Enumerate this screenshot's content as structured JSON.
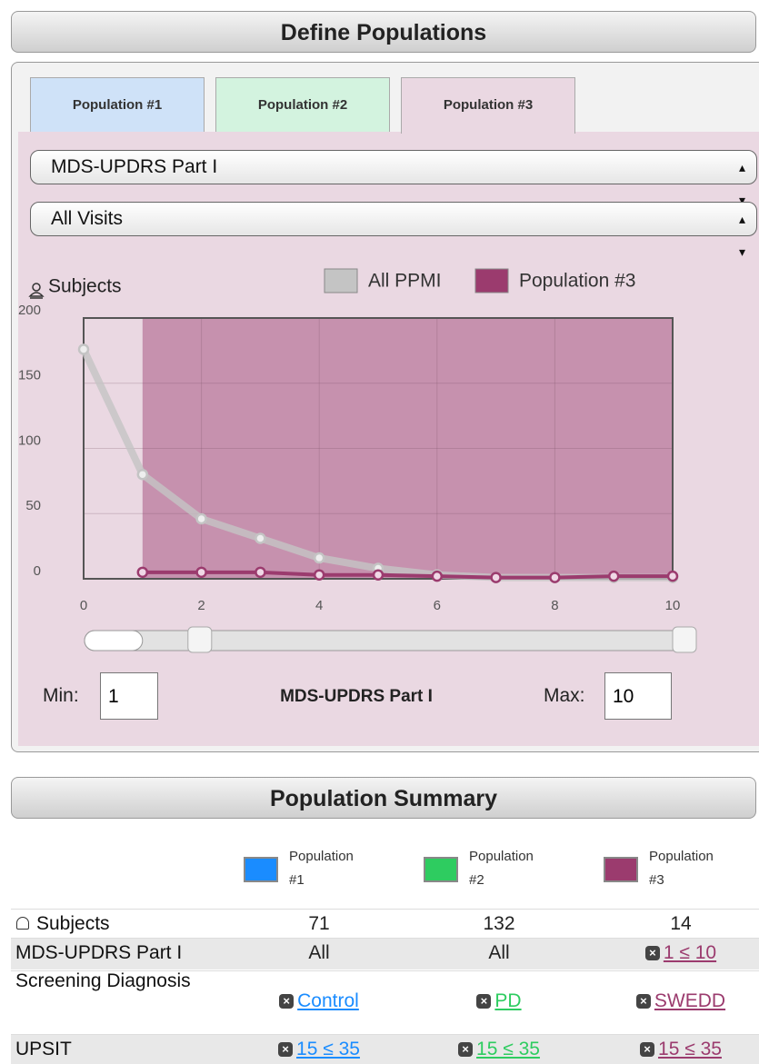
{
  "header": {
    "title": "Define Populations"
  },
  "tabs": [
    "Population #1",
    "Population #2",
    "Population #3"
  ],
  "selects": [
    "MDS-UPDRS Part I",
    "All Visits"
  ],
  "chart_data": {
    "type": "line",
    "y_label": "Subjects",
    "x": [
      0,
      1,
      2,
      3,
      4,
      5,
      6,
      7,
      8,
      9,
      10
    ],
    "series": [
      {
        "name": "All PPMI",
        "color": "#c4c4c4",
        "values": [
          176,
          80,
          46,
          31,
          16,
          8,
          3,
          1,
          1,
          1,
          1
        ]
      },
      {
        "name": "Population #3",
        "color": "#9b3b6e",
        "values": [
          null,
          5,
          5,
          5,
          3,
          3,
          2,
          1,
          1,
          2,
          2
        ]
      }
    ],
    "xlim": [
      0,
      10
    ],
    "ylim": [
      0,
      200
    ],
    "xticks": [
      0,
      2,
      4,
      6,
      8,
      10
    ],
    "yticks": [
      0,
      50,
      100,
      150,
      200
    ],
    "grid": true
  },
  "range": {
    "min_label": "Min:",
    "min": 1,
    "label": "MDS-UPDRS Part I",
    "max_label": "Max:",
    "max": 10
  },
  "summary": {
    "title": "Population Summary",
    "columns": [
      {
        "name": "Population #1",
        "color": "#1a8cff"
      },
      {
        "name": "Population #2",
        "color": "#2ecc60"
      },
      {
        "name": "Population #3",
        "color": "#9b3b6e"
      }
    ],
    "rows": [
      {
        "label": "Subjects",
        "cells": [
          71,
          132,
          14
        ]
      },
      {
        "label": "MDS-UPDRS Part I",
        "cells": [
          "All",
          "All",
          "1 ≤ 10"
        ]
      },
      {
        "label": "Screening Diagnosis",
        "cells": [
          "Control",
          "PD",
          "SWEDD"
        ]
      },
      {
        "label": "UPSIT",
        "cells": [
          "15 ≤ 35",
          "15 ≤ 35",
          "15 ≤ 35"
        ]
      }
    ]
  }
}
